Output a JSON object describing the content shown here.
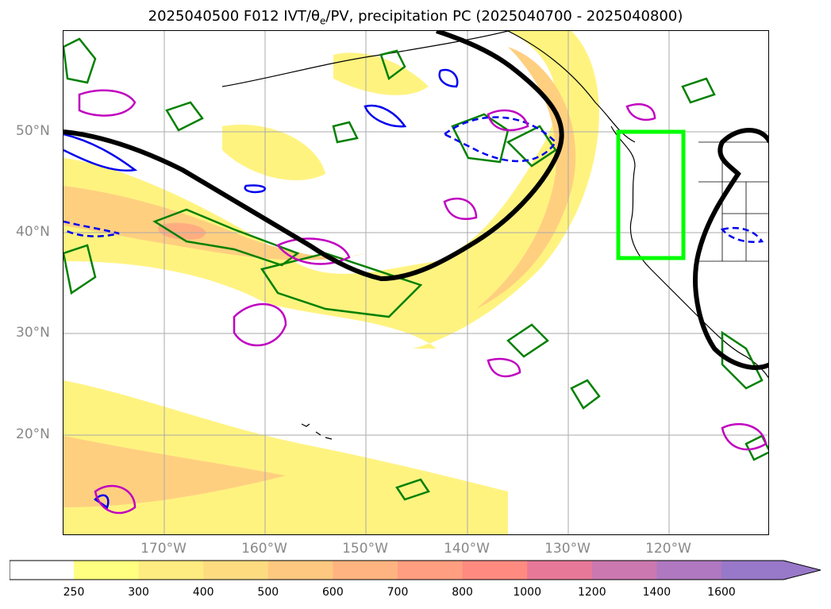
{
  "title": "2025040500 F012 IVT/θ",
  "title_sub": "e",
  "title_rest": "/PV, precipitation PC (2025040700 - 2025040800)",
  "map": {
    "projection": "PlateCarree",
    "extent": {
      "lon": [
        -180,
        -110
      ],
      "lat": [
        10,
        60
      ]
    },
    "lat_labels": [
      "50°N",
      "40°N",
      "30°N",
      "20°N"
    ],
    "lon_labels": [
      "170°W",
      "160°W",
      "150°W",
      "140°W",
      "130°W",
      "120°W"
    ],
    "grid": true,
    "colors": {
      "coastline": "#000000",
      "contour_thick": "#000000",
      "pv_contour": "#0000ee",
      "precip_contour": "#008000",
      "theta_contour": "#c000c0",
      "box": "#00ff00"
    },
    "highlight_box": {
      "lon": [
        -125,
        -118.5
      ],
      "lat": [
        37.5,
        50
      ]
    }
  },
  "colorbar": {
    "ticks": [
      "250",
      "300",
      "400",
      "500",
      "600",
      "700",
      "800",
      "1000",
      "1200",
      "1400",
      "1600"
    ],
    "colors": [
      "#ffff80",
      "#ffec80",
      "#ffdb80",
      "#ffc880",
      "#ffb380",
      "#ff9e80",
      "#ff8a80",
      "#e87898",
      "#cc78b0",
      "#b078c0",
      "#9878c8"
    ],
    "extend": "max"
  }
}
